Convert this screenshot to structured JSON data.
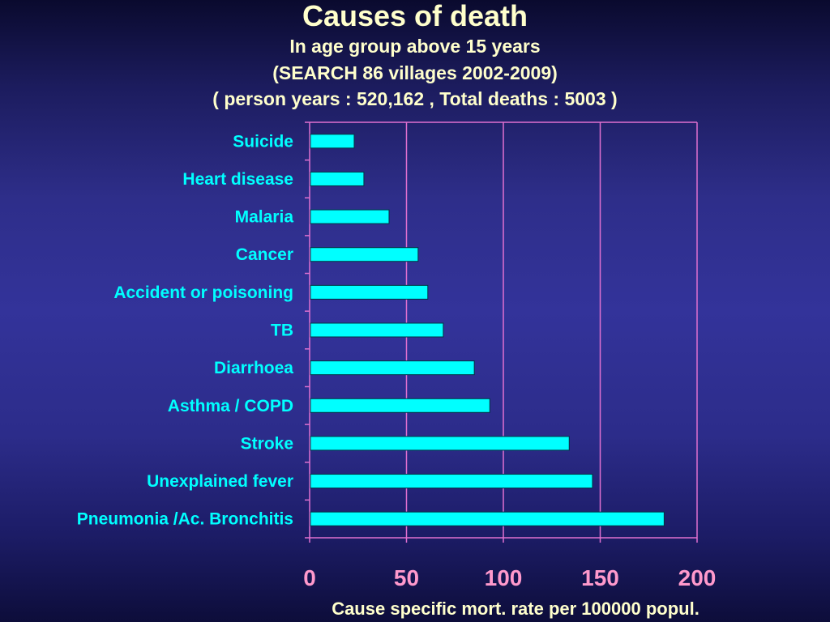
{
  "chart_data": {
    "type": "bar",
    "orientation": "horizontal",
    "title": "Causes of death",
    "subtitles": [
      "In age group above 15 years",
      "(SEARCH  86 villages 2002-2009)",
      "( person years : 520,162 ,  Total deaths : 5003 )"
    ],
    "categories": [
      "Suicide",
      "Heart disease",
      "Malaria",
      "Cancer",
      "Accident or poisoning",
      "TB",
      "Diarrhoea",
      "Asthma / COPD",
      "Stroke",
      "Unexplained fever",
      "Pneumonia /Ac. Bronchitis"
    ],
    "values": [
      23,
      28,
      41,
      56,
      61,
      69,
      85,
      93,
      134,
      146,
      183
    ],
    "xlabel": "Cause specific mort. rate per 100000 popul.",
    "xlim": [
      0,
      200
    ],
    "xticks": [
      "0",
      "50",
      "100",
      "150",
      "200"
    ],
    "grid": true,
    "legend": "none"
  },
  "colors": {
    "bar": "#00ffff",
    "bar_edge": "#003344",
    "axis": "#e070d0",
    "category_label": "#00ffff",
    "tick_label": "#ff99cc",
    "axis_title": "#ffffcc",
    "title": "#ffffcc"
  }
}
